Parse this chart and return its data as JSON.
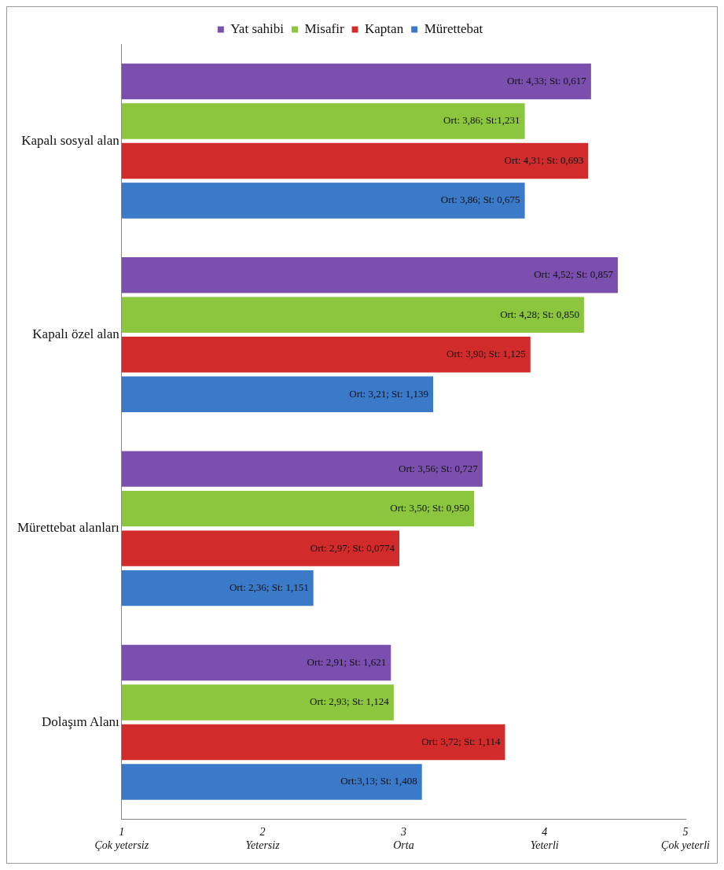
{
  "chart_data": {
    "type": "bar",
    "orientation": "horizontal",
    "categories": [
      "Kapalı sosyal alan",
      "Kapalı özel alan",
      "Mürettebat alanları",
      "Dolaşım Alanı"
    ],
    "series": [
      {
        "name": "Yat sahibi",
        "color": "#7b4fae",
        "values": [
          4.33,
          4.52,
          3.56,
          2.91
        ],
        "value_labels": [
          "Ort: 4,33; St: 0,617",
          "Ort: 4,52; St: 0,857",
          "Ort: 3,56; St: 0,727",
          "Ort: 2,91; St: 1,621"
        ]
      },
      {
        "name": "Misafir",
        "color": "#8cc63e",
        "values": [
          3.86,
          4.28,
          3.5,
          2.93
        ],
        "value_labels": [
          "Ort: 3,86; St:1,231",
          "Ort: 4,28; St: 0,850",
          "Ort: 3,50; St: 0,950",
          "Ort: 2,93; St: 1,124"
        ]
      },
      {
        "name": "Kaptan",
        "color": "#d12b2b",
        "values": [
          4.31,
          3.9,
          2.97,
          3.72
        ],
        "value_labels": [
          "Ort: 4,31; St: 0,693",
          "Ort: 3,90; St: 1,125",
          "Ort: 2,97; St: 0,0774",
          "Ort: 3,72; St: 1,114"
        ]
      },
      {
        "name": "Mürettebat",
        "color": "#3b79c9",
        "values": [
          3.86,
          3.21,
          2.36,
          3.13
        ],
        "value_labels": [
          "Ort: 3,86; St: 0,675",
          "Ort: 3,21; St: 1,139",
          "Ort: 2,36; St: 1,151",
          "Ort:3,13; St: 1,408"
        ]
      }
    ],
    "xlim": [
      1,
      5
    ],
    "xticks": [
      {
        "value": 1,
        "label": "1\nÇok yetersiz"
      },
      {
        "value": 2,
        "label": "2\nYetersiz"
      },
      {
        "value": 3,
        "label": "3\nOrta"
      },
      {
        "value": 4,
        "label": "4\nYeterli"
      },
      {
        "value": 5,
        "label": "5\nÇok yeterli"
      }
    ],
    "grid": false,
    "legend": "top"
  }
}
